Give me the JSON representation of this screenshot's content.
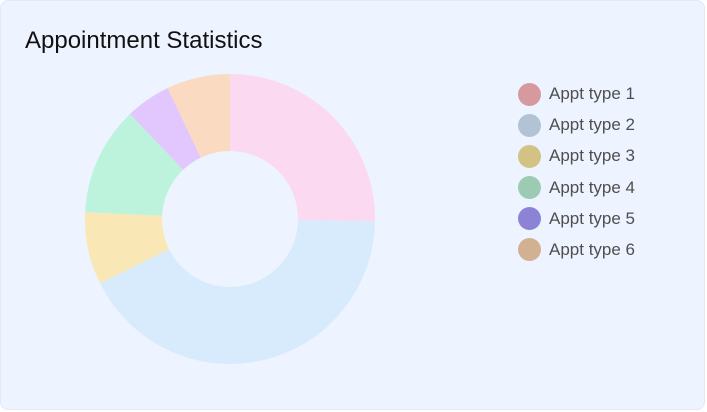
{
  "card": {
    "title": "Appointment Statistics"
  },
  "chart_data": {
    "type": "pie",
    "variant": "donut",
    "title": "Appointment Statistics",
    "categories": [
      "Appt type 1",
      "Appt type 2",
      "Appt type 3",
      "Appt type 4",
      "Appt type 5",
      "Appt type 6"
    ],
    "values": [
      25,
      42,
      8,
      12,
      5,
      7
    ],
    "unit": "percent",
    "start": "12 o'clock",
    "direction": "clockwise",
    "legend_position": "right",
    "slice_colors": [
      "#fad9f1",
      "#d8ebfd",
      "#f9e7b5",
      "#bdf3dd",
      "#e1c7fd",
      "#fadbc2"
    ],
    "legend_colors": [
      "#d69a9e",
      "#b2c3d6",
      "#d2c283",
      "#9ccbb4",
      "#8d83d6",
      "#d2b092"
    ]
  }
}
